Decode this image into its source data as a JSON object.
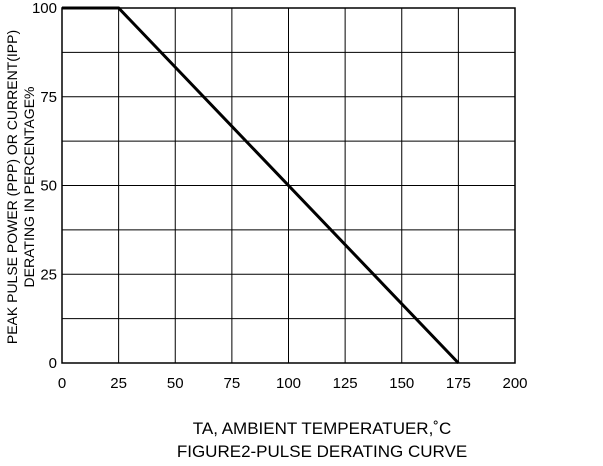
{
  "chart_data": {
    "type": "line",
    "title": "FIGURE2-PULSE DERATING CURVE",
    "xlabel": "TA, AMBIENT TEMPERATUER,˚C",
    "ylabel_lines": [
      "PEAK PULSE POWER (PPP) OR CURRENT(IPP)",
      "DERATING IN PERCENTAGE%"
    ],
    "xlim": [
      0,
      200
    ],
    "ylim": [
      0,
      100
    ],
    "x_ticks": [
      "0",
      "25",
      "50",
      "75",
      "100",
      "125",
      "150",
      "175",
      "200"
    ],
    "y_ticks": [
      "100",
      "75",
      "50",
      "25",
      "0"
    ],
    "grid": true,
    "x_grid_step": 25,
    "y_grid_step": 12.5,
    "series": [
      {
        "x": [
          0,
          25,
          175
        ],
        "y": [
          100,
          100,
          0
        ]
      }
    ]
  }
}
